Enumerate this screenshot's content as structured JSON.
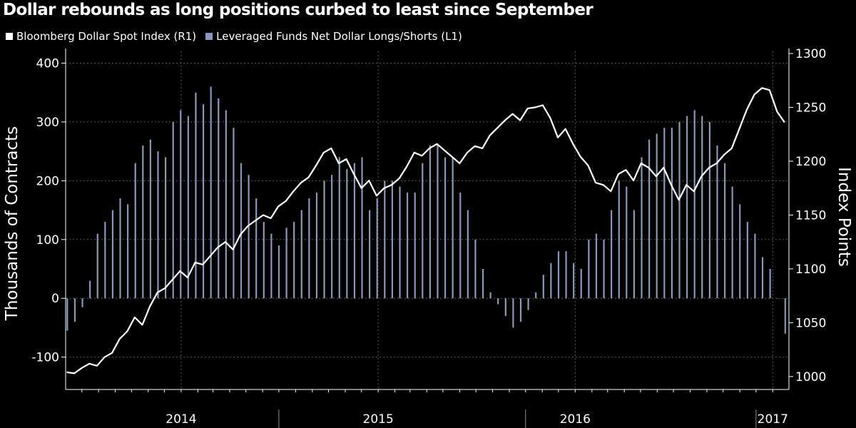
{
  "chart_data": {
    "type": "bar+line",
    "title": "Dollar rebounds as long positions curbed to least since September",
    "legend": {
      "placement": "top-left",
      "entries": [
        {
          "label": "Bloomberg Dollar Spot Index (R1)",
          "color": "#ffffff"
        },
        {
          "label": "Leveraged Funds Net Dollar Longs/Shorts (L1)",
          "color": "#8a97bd"
        }
      ]
    },
    "x_axis": {
      "range": [
        "2013-06-01",
        "2017-01-31"
      ],
      "tick_labels": [
        "2014",
        "2015",
        "2016",
        "2017"
      ],
      "label_dates": [
        "2014-01-01",
        "2015-01-01",
        "2016-01-01",
        "2017-01-01"
      ],
      "separator_dates": [
        "2014-07-01",
        "2015-10-01",
        "2016-12-01"
      ]
    },
    "y_left": {
      "label": "Thousands of Contracts",
      "range": [
        -155,
        420
      ],
      "ticks": [
        -100,
        0,
        100,
        200,
        300,
        400
      ]
    },
    "y_right": {
      "label": "Index Points",
      "range": [
        988,
        1302
      ],
      "ticks": [
        1000,
        1050,
        1100,
        1150,
        1200,
        1250,
        1300
      ]
    },
    "grid": true,
    "series": [
      {
        "name": "Leveraged Funds Net Dollar Longs/Shorts (L1)",
        "axis": "left",
        "type": "bar",
        "color": "#8a97bd",
        "x": [
          "2013-06-04",
          "2013-06-18",
          "2013-07-02",
          "2013-07-16",
          "2013-07-30",
          "2013-08-13",
          "2013-08-27",
          "2013-09-10",
          "2013-09-24",
          "2013-10-08",
          "2013-10-22",
          "2013-11-05",
          "2013-11-19",
          "2013-12-03",
          "2013-12-17",
          "2013-12-31",
          "2014-01-14",
          "2014-01-28",
          "2014-02-11",
          "2014-02-25",
          "2014-03-11",
          "2014-03-25",
          "2014-04-08",
          "2014-04-22",
          "2014-05-06",
          "2014-05-20",
          "2014-06-03",
          "2014-06-17",
          "2014-07-01",
          "2014-07-15",
          "2014-07-29",
          "2014-08-12",
          "2014-08-26",
          "2014-09-09",
          "2014-09-23",
          "2014-10-07",
          "2014-10-21",
          "2014-11-04",
          "2014-11-18",
          "2014-12-02",
          "2014-12-16",
          "2014-12-30",
          "2015-01-13",
          "2015-01-27",
          "2015-02-10",
          "2015-02-24",
          "2015-03-10",
          "2015-03-24",
          "2015-04-07",
          "2015-04-21",
          "2015-05-05",
          "2015-05-19",
          "2015-06-02",
          "2015-06-16",
          "2015-06-30",
          "2015-07-14",
          "2015-07-28",
          "2015-08-11",
          "2015-08-25",
          "2015-09-08",
          "2015-09-22",
          "2015-10-06",
          "2015-10-20",
          "2015-11-03",
          "2015-11-17",
          "2015-12-01",
          "2015-12-15",
          "2015-12-29",
          "2016-01-12",
          "2016-01-26",
          "2016-02-09",
          "2016-02-23",
          "2016-03-08",
          "2016-03-22",
          "2016-04-05",
          "2016-04-19",
          "2016-05-03",
          "2016-05-17",
          "2016-05-31",
          "2016-06-14",
          "2016-06-28",
          "2016-07-12",
          "2016-07-26",
          "2016-08-09",
          "2016-08-23",
          "2016-09-06",
          "2016-09-20",
          "2016-10-04",
          "2016-10-18",
          "2016-11-01",
          "2016-11-15",
          "2016-11-29",
          "2016-12-13",
          "2016-12-27",
          "2017-01-10",
          "2017-01-24"
        ],
        "values": [
          -55,
          -40,
          -15,
          30,
          110,
          130,
          150,
          170,
          160,
          230,
          260,
          270,
          250,
          240,
          300,
          320,
          310,
          350,
          330,
          360,
          340,
          320,
          290,
          230,
          210,
          170,
          130,
          110,
          90,
          120,
          130,
          150,
          170,
          180,
          200,
          210,
          240,
          220,
          230,
          240,
          150,
          170,
          200,
          200,
          190,
          180,
          180,
          230,
          260,
          260,
          240,
          240,
          180,
          150,
          100,
          50,
          10,
          -10,
          -30,
          -50,
          -40,
          -20,
          10,
          40,
          60,
          80,
          80,
          60,
          50,
          100,
          110,
          100,
          150,
          200,
          190,
          150,
          240,
          270,
          280,
          290,
          290,
          300,
          310,
          320,
          310,
          300,
          260,
          230,
          190,
          160,
          130,
          110,
          70,
          50,
          0,
          -60
        ]
      },
      {
        "name": "Bloomberg Dollar Spot Index (R1)",
        "axis": "right",
        "type": "line",
        "color": "#ffffff",
        "x": [
          "2013-06-03",
          "2013-06-17",
          "2013-07-01",
          "2013-07-15",
          "2013-07-29",
          "2013-08-12",
          "2013-08-26",
          "2013-09-09",
          "2013-09-23",
          "2013-10-07",
          "2013-10-21",
          "2013-11-04",
          "2013-11-18",
          "2013-12-02",
          "2013-12-16",
          "2013-12-30",
          "2014-01-13",
          "2014-01-27",
          "2014-02-10",
          "2014-02-24",
          "2014-03-10",
          "2014-03-24",
          "2014-04-07",
          "2014-04-21",
          "2014-05-05",
          "2014-05-19",
          "2014-06-02",
          "2014-06-16",
          "2014-06-30",
          "2014-07-14",
          "2014-07-28",
          "2014-08-11",
          "2014-08-25",
          "2014-09-08",
          "2014-09-22",
          "2014-10-06",
          "2014-10-20",
          "2014-11-03",
          "2014-11-17",
          "2014-12-01",
          "2014-12-15",
          "2014-12-29",
          "2015-01-12",
          "2015-01-26",
          "2015-02-09",
          "2015-02-23",
          "2015-03-09",
          "2015-03-23",
          "2015-04-06",
          "2015-04-20",
          "2015-05-04",
          "2015-05-18",
          "2015-06-01",
          "2015-06-15",
          "2015-06-29",
          "2015-07-13",
          "2015-07-27",
          "2015-08-10",
          "2015-08-24",
          "2015-09-07",
          "2015-09-21",
          "2015-10-05",
          "2015-10-19",
          "2015-11-02",
          "2015-11-16",
          "2015-11-30",
          "2015-12-14",
          "2015-12-28",
          "2016-01-11",
          "2016-01-25",
          "2016-02-08",
          "2016-02-22",
          "2016-03-07",
          "2016-03-21",
          "2016-04-04",
          "2016-04-18",
          "2016-05-02",
          "2016-05-16",
          "2016-05-30",
          "2016-06-13",
          "2016-06-27",
          "2016-07-11",
          "2016-07-25",
          "2016-08-08",
          "2016-08-22",
          "2016-09-05",
          "2016-09-19",
          "2016-10-03",
          "2016-10-17",
          "2016-10-31",
          "2016-11-14",
          "2016-11-28",
          "2016-12-12",
          "2016-12-26",
          "2017-01-09",
          "2017-01-23"
        ],
        "values": [
          1004,
          1003,
          1008,
          1012,
          1010,
          1018,
          1022,
          1035,
          1042,
          1055,
          1048,
          1065,
          1078,
          1082,
          1090,
          1098,
          1092,
          1106,
          1104,
          1112,
          1120,
          1125,
          1118,
          1132,
          1140,
          1145,
          1150,
          1147,
          1158,
          1163,
          1172,
          1180,
          1185,
          1196,
          1208,
          1212,
          1198,
          1202,
          1188,
          1175,
          1182,
          1168,
          1175,
          1178,
          1184,
          1195,
          1208,
          1205,
          1212,
          1216,
          1210,
          1204,
          1198,
          1208,
          1214,
          1212,
          1224,
          1231,
          1238,
          1244,
          1238,
          1249,
          1250,
          1252,
          1240,
          1222,
          1230,
          1216,
          1204,
          1196,
          1180,
          1178,
          1172,
          1188,
          1192,
          1182,
          1198,
          1194,
          1186,
          1194,
          1178,
          1164,
          1178,
          1172,
          1186,
          1194,
          1198,
          1206,
          1212,
          1230,
          1248,
          1262,
          1268,
          1266,
          1246,
          1236
        ]
      }
    ]
  }
}
